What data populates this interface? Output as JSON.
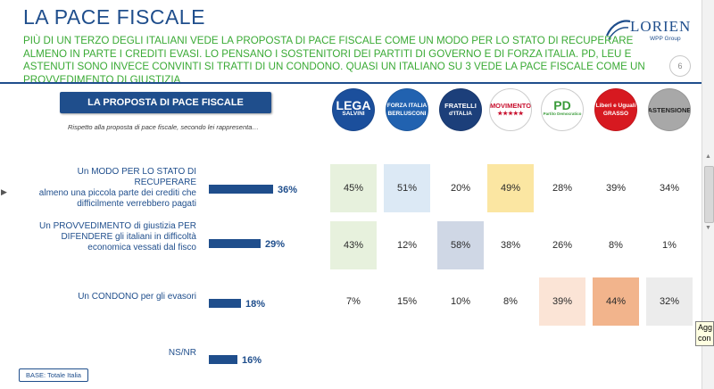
{
  "slide": {
    "title": "LA PACE FISCALE",
    "subtitle": "PIÙ DI UN TERZO DEGLI ITALIANI VEDE LA PROPOSTA DI PACE FISCALE COME UN MODO PER LO STATO DI RECUPERARE ALMENO IN PARTE I CREDITI EVASI. LO PENSANO I SOSTENITORI DEI PARTITI DI GOVERNO E DI FORZA ITALIA. PD, LEU E ASTENUTI SONO INVECE CONVINTI SI TRATTI DI UN CONDONO. QUASI UN ITALIANO SU 3 VEDE LA PACE FISCALE COME UN PROVVEDIMENTO DI GIUSTIZIA",
    "page_number": "6",
    "logo_text": "LORIEN",
    "logo_subtext": "WPP Group",
    "section_title": "LA PROPOSTA DI PACE FISCALE",
    "section_note": "Rispetto alla proposta di pace fiscale, secondo lei rappresenta…",
    "base_label": "BASE: Totale Italia",
    "tooltip_text": "Agg con"
  },
  "parties": [
    {
      "name": "LEGA SALVINI",
      "line1": "LEGA",
      "line2": "SALVINI",
      "bg": "#1b4f9c",
      "fg": "#ffffff"
    },
    {
      "name": "FORZA ITALIA BERLUSCONI",
      "line1": "FORZA ITALIA",
      "line2": "BERLUSCONI",
      "bg": "#2162b0",
      "fg": "#ffffff"
    },
    {
      "name": "FRATELLI D'ITALIA",
      "line1": "FRATELLI",
      "line2": "d'ITALIA",
      "bg": "#1c3f7a",
      "fg": "#ffffff"
    },
    {
      "name": "MOVIMENTO 5 STELLE",
      "line1": "MOVIMENTO",
      "line2": "★★★★★",
      "bg": "#ffffff",
      "fg": "#c8102e"
    },
    {
      "name": "PD Partito Democratico",
      "line1": "PD",
      "line2": "Partito Democratico",
      "bg": "#ffffff",
      "fg": "#3a9b3a"
    },
    {
      "name": "Liberi e Uguali GRASSO",
      "line1": "Liberi e Uguali",
      "line2": "GRASSO",
      "bg": "#d71920",
      "fg": "#ffffff"
    },
    {
      "name": "ASTENSIONE",
      "line1": "ASTENSIONE",
      "line2": "",
      "bg": "#a8a8a8",
      "fg": "#222222"
    }
  ],
  "chart_data": {
    "type": "bar",
    "categories": [
      "Un MODO PER LO STATO DI RECUPERARE almeno una piccola parte dei crediti che difficilmente verrebbero pagati",
      "Un PROVVEDIMENTO di giustizia PER DIFENDERE gli italiani in difficoltà economica vessati dal fisco",
      "Un CONDONO per gli evasori",
      "NS/NR"
    ],
    "label_lines": [
      [
        "Un MODO PER LO STATO DI RECUPERARE",
        "almeno una piccola parte dei crediti che",
        "difficilmente verrebbero pagati"
      ],
      [
        "Un PROVVEDIMENTO di giustizia PER",
        "DIFENDERE gli italiani in difficoltà",
        "economica vessati dal fisco"
      ],
      [
        "Un CONDONO per gli evasori"
      ],
      [
        "NS/NR"
      ]
    ],
    "values": [
      36,
      29,
      18,
      16
    ],
    "value_labels": [
      "36%",
      "29%",
      "18%",
      "16%"
    ],
    "xlim": [
      0,
      100
    ],
    "bar_color": "#1f4e8c",
    "table": {
      "columns": [
        "LEGA SALVINI",
        "FORZA ITALIA BERLUSCONI",
        "FRATELLI D'ITALIA",
        "MOVIMENTO 5 STELLE",
        "PD",
        "Liberi e Uguali",
        "ASTENSIONE"
      ],
      "rows": [
        {
          "values": [
            45,
            51,
            20,
            49,
            28,
            39,
            34
          ],
          "labels": [
            "45%",
            "51%",
            "20%",
            "49%",
            "28%",
            "39%",
            "34%"
          ],
          "highlight": [
            "#e7f1dd",
            "#dce9f5",
            "",
            "#fbe6a2",
            "",
            "",
            ""
          ]
        },
        {
          "values": [
            43,
            12,
            58,
            38,
            26,
            8,
            1
          ],
          "labels": [
            "43%",
            "12%",
            "58%",
            "38%",
            "26%",
            "8%",
            "1%"
          ],
          "highlight": [
            "#e7f1dd",
            "",
            "#cfd7e5",
            "",
            "",
            "",
            ""
          ]
        },
        {
          "values": [
            7,
            15,
            10,
            8,
            39,
            44,
            32
          ],
          "labels": [
            "7%",
            "15%",
            "10%",
            "8%",
            "39%",
            "44%",
            "32%"
          ],
          "highlight": [
            "",
            "",
            "",
            "",
            "#fbe4d6",
            "#f2b48c",
            "#ececec"
          ]
        }
      ]
    }
  }
}
